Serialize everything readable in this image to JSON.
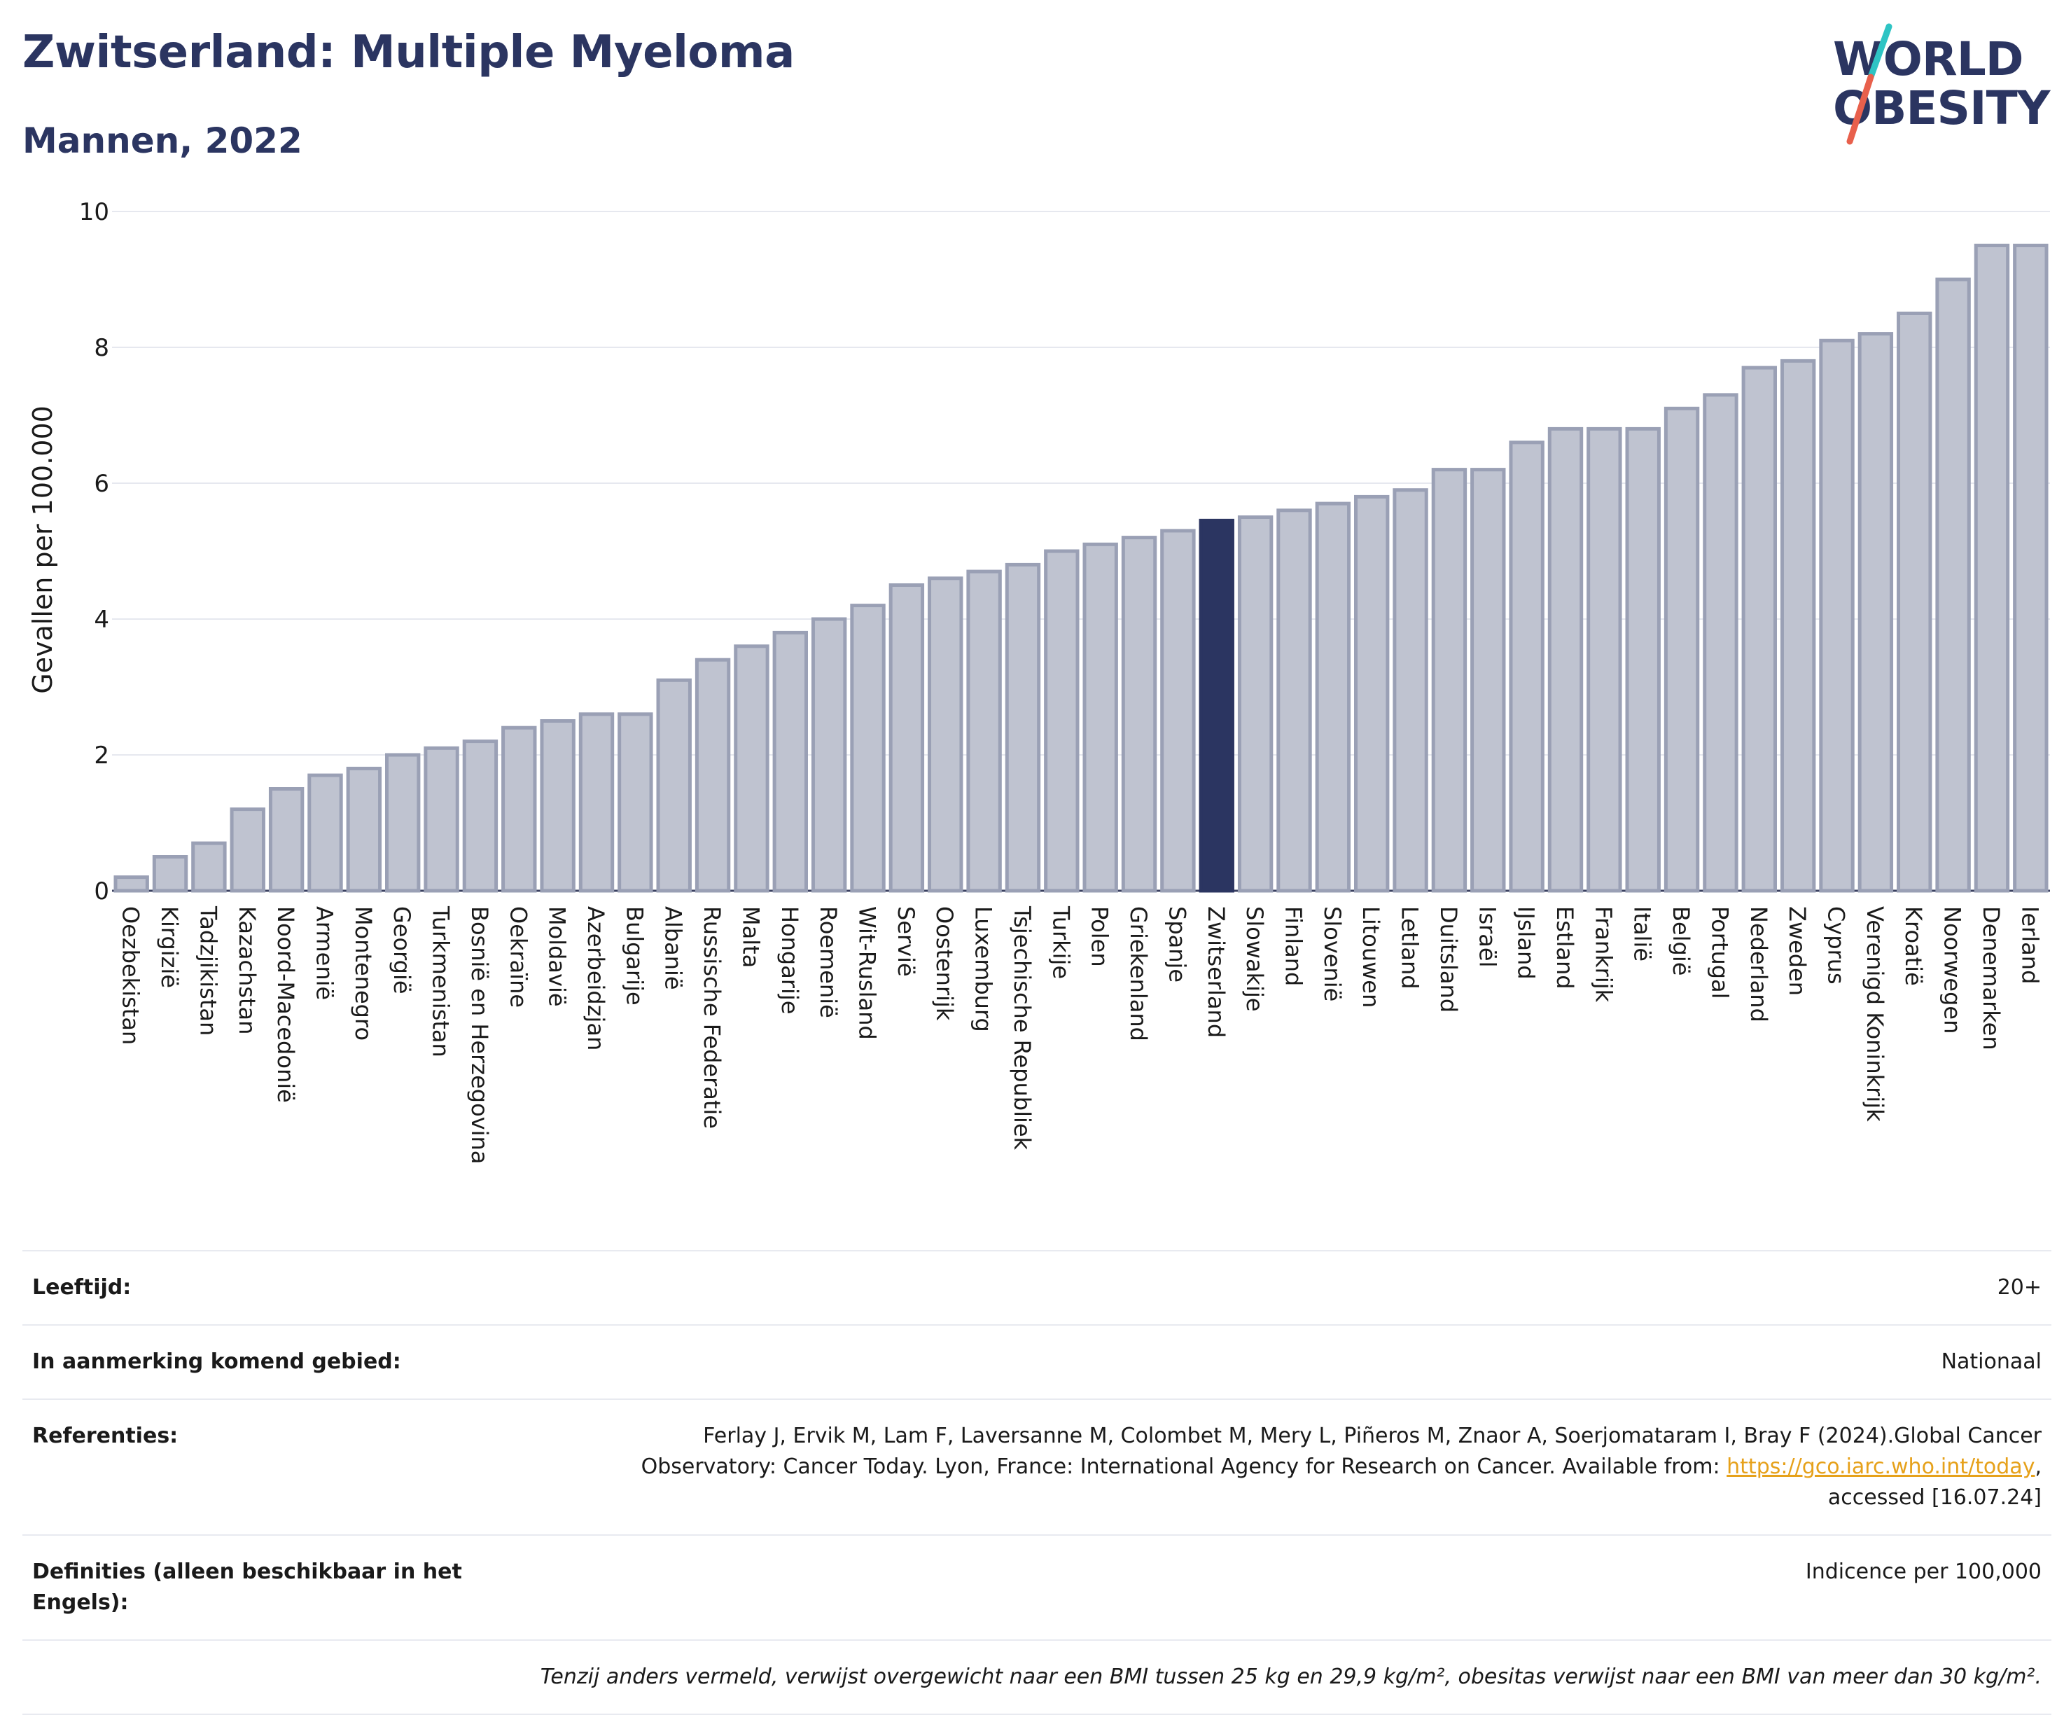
{
  "header": {
    "title": "Zwitserland: Multiple Myeloma",
    "subtitle": "Mannen, 2022"
  },
  "logo": {
    "line1": "WORLD",
    "line2": "OBESITY",
    "colors": {
      "text": "#2b3561",
      "slash_top": "#2ec4c4",
      "slash_bottom": "#e8604c"
    }
  },
  "colors": {
    "bar_default": "#bfc3d0",
    "bar_border": "#9aa0b5",
    "bar_highlight": "#2b3561",
    "grid": "#e6e8ef",
    "axis_text": "#1a1a1a"
  },
  "chart_data": {
    "type": "bar",
    "ylabel": "Gevallen per 100.000",
    "ylim": [
      0,
      10
    ],
    "yticks": [
      0,
      2,
      4,
      6,
      8,
      10
    ],
    "grid": true,
    "highlight": "Zwitserland",
    "categories": [
      "Oezbekistan",
      "Kirgizië",
      "Tadzjikistan",
      "Kazachstan",
      "Noord-Macedonië",
      "Armenië",
      "Montenegro",
      "Georgië",
      "Turkmenistan",
      "Bosnië en Herzegovina",
      "Oekraïne",
      "Moldavië",
      "Azerbeidzjan",
      "Bulgarije",
      "Albanië",
      "Russische Federatie",
      "Malta",
      "Hongarije",
      "Roemenië",
      "Wit-Rusland",
      "Servië",
      "Oostenrijk",
      "Luxemburg",
      "Tsjechische Republiek",
      "Turkije",
      "Polen",
      "Griekenland",
      "Spanje",
      "Zwitserland",
      "Slowakije",
      "Finland",
      "Slovenië",
      "Litouwen",
      "Letland",
      "Duitsland",
      "Israël",
      "IJsland",
      "Estland",
      "Frankrijk",
      "Italië",
      "België",
      "Portugal",
      "Nederland",
      "Zweden",
      "Cyprus",
      "Verenigd Koninkrijk",
      "Kroatië",
      "Noorwegen",
      "Denemarken",
      "Ierland"
    ],
    "values": [
      0.2,
      0.5,
      0.7,
      1.2,
      1.5,
      1.7,
      1.8,
      2.0,
      2.1,
      2.2,
      2.4,
      2.5,
      2.6,
      2.6,
      3.1,
      3.4,
      3.6,
      3.8,
      4.0,
      4.2,
      4.5,
      4.6,
      4.7,
      4.8,
      5.0,
      5.1,
      5.2,
      5.3,
      5.45,
      5.5,
      5.6,
      5.7,
      5.8,
      5.9,
      6.2,
      6.2,
      6.6,
      6.8,
      6.8,
      6.8,
      7.1,
      7.3,
      7.7,
      7.8,
      8.1,
      8.2,
      8.5,
      9.0,
      9.5,
      9.5
    ]
  },
  "info": {
    "age_label": "Leeftijd:",
    "age_value": "20+",
    "area_label": "In aanmerking komend gebied:",
    "area_value": "Nationaal",
    "ref_label": "Referenties:",
    "ref_text_1": "Ferlay J, Ervik M, Lam F, Laversanne M, Colombet M, Mery L, Piñeros M, Znaor A, Soerjomataram I, Bray F (2024).Global Cancer",
    "ref_text_2": "Observatory: Cancer Today. Lyon, France: International Agency for Research on Cancer. Available from: ",
    "ref_link": "https://gco.iarc.who.int/today",
    "ref_text_3": ",",
    "ref_text_4": "accessed [16.07.24]",
    "def_label": "Definities (alleen beschikbaar in het Engels):",
    "def_value": "Indicence per 100,000",
    "note": "Tenzij anders vermeld, verwijst overgewicht naar een BMI tussen 25 kg en 29,9 kg/m², obesitas verwijst naar een BMI van meer dan 30 kg/m²."
  }
}
